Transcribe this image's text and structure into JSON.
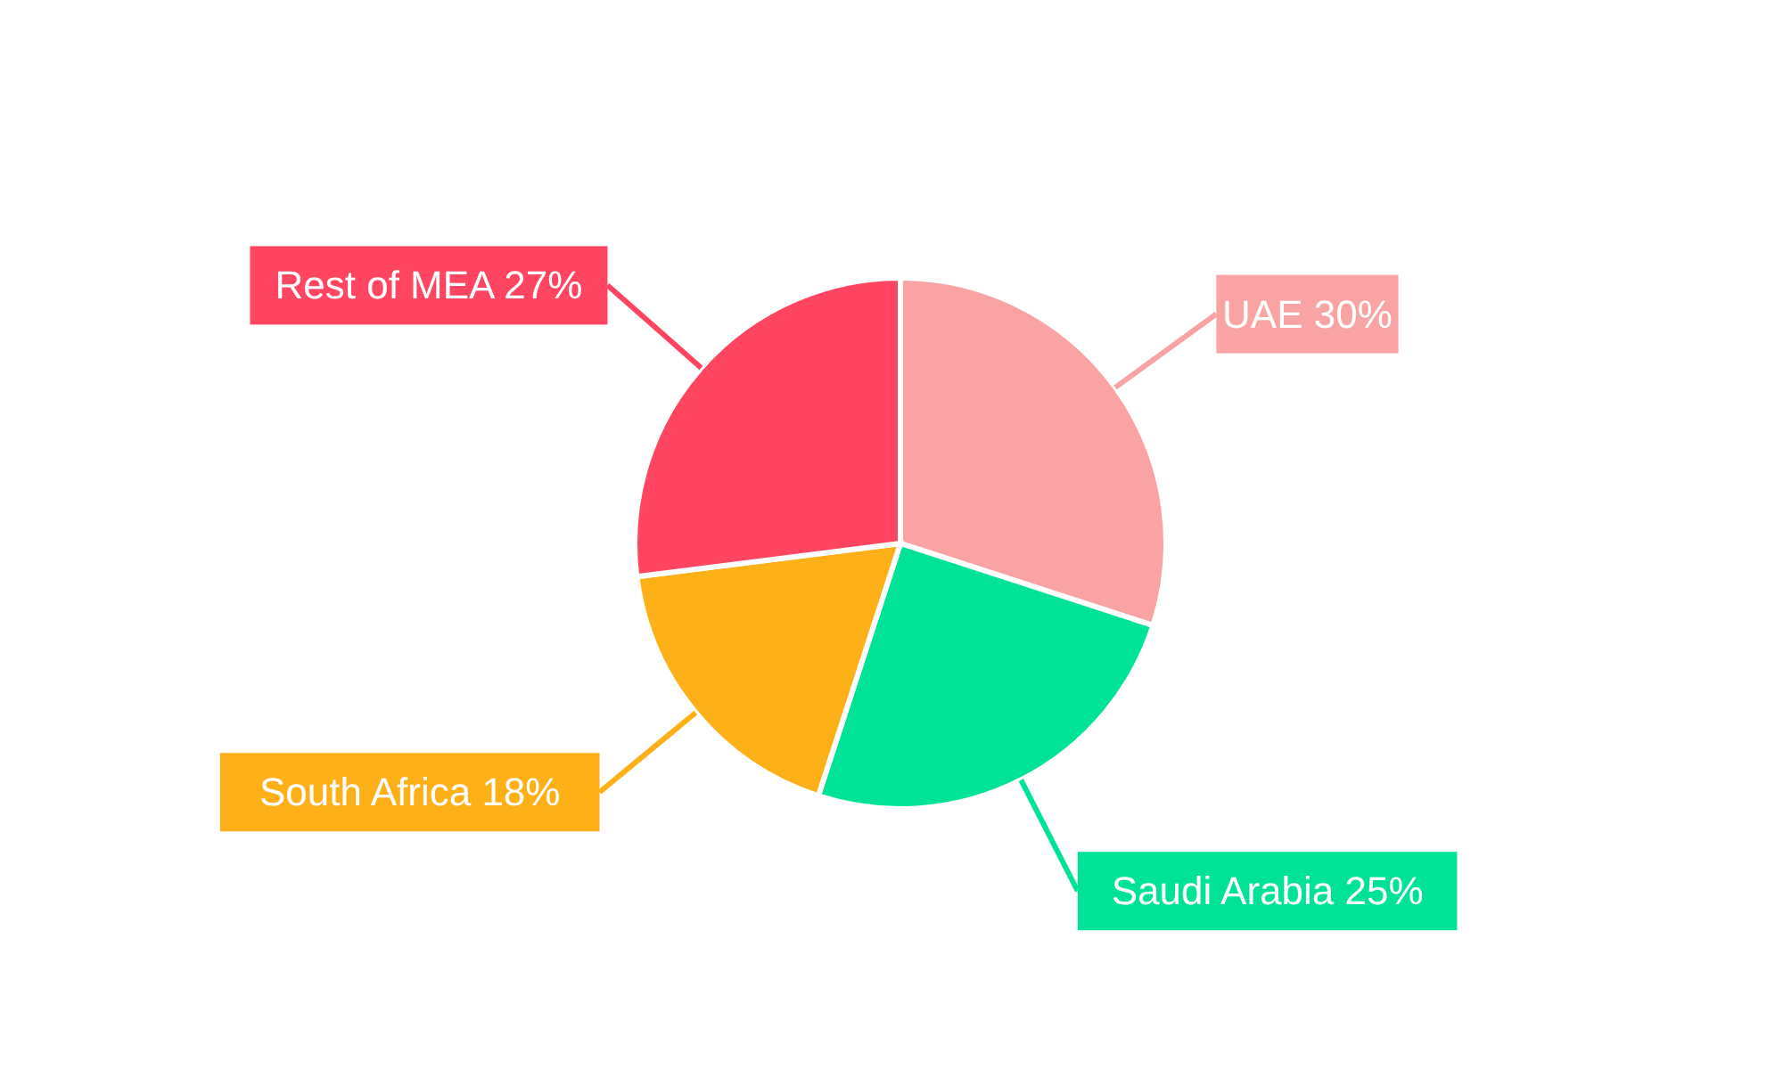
{
  "chart_data": {
    "type": "pie",
    "categories": [
      "UAE",
      "Saudi Arabia",
      "South Africa",
      "Rest of MEA"
    ],
    "values": [
      30,
      25,
      18,
      27
    ],
    "value_labels": [
      "30%",
      "25%",
      "18%",
      "27%"
    ],
    "colors": [
      "#f9a3a4",
      "#00e396",
      "#feb019",
      "#ff4560"
    ]
  }
}
